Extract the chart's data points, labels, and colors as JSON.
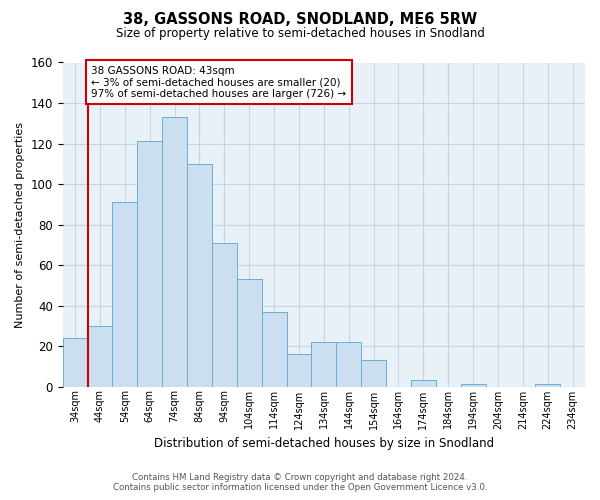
{
  "title": "38, GASSONS ROAD, SNODLAND, ME6 5RW",
  "subtitle": "Size of property relative to semi-detached houses in Snodland",
  "xlabel": "Distribution of semi-detached houses by size in Snodland",
  "ylabel": "Number of semi-detached properties",
  "footer_line1": "Contains HM Land Registry data © Crown copyright and database right 2024.",
  "footer_line2": "Contains public sector information licensed under the Open Government Licence v3.0.",
  "bin_labels": [
    "34sqm",
    "44sqm",
    "54sqm",
    "64sqm",
    "74sqm",
    "84sqm",
    "94sqm",
    "104sqm",
    "114sqm",
    "124sqm",
    "134sqm",
    "144sqm",
    "154sqm",
    "164sqm",
    "174sqm",
    "184sqm",
    "194sqm",
    "204sqm",
    "214sqm",
    "224sqm",
    "234sqm"
  ],
  "bar_values": [
    24,
    30,
    91,
    121,
    133,
    110,
    71,
    53,
    37,
    16,
    22,
    22,
    13,
    0,
    3,
    0,
    1,
    0,
    0,
    1,
    0
  ],
  "bar_color": "#ccdff0",
  "bar_edge_color": "#6baed6",
  "highlight_color": "#cc0000",
  "annotation_title": "38 GASSONS ROAD: 43sqm",
  "annotation_line2": "← 3% of semi-detached houses are smaller (20)",
  "annotation_line3": "97% of semi-detached houses are larger (726) →",
  "annotation_box_color": "#ffffff",
  "annotation_border_color": "#cc0000",
  "ylim": [
    0,
    160
  ],
  "yticks": [
    0,
    20,
    40,
    60,
    80,
    100,
    120,
    140,
    160
  ],
  "plot_bg_color": "#e8f0f8",
  "background_color": "#ffffff",
  "grid_color": "#c8d4e4",
  "figsize": [
    6.0,
    5.0
  ],
  "dpi": 100
}
